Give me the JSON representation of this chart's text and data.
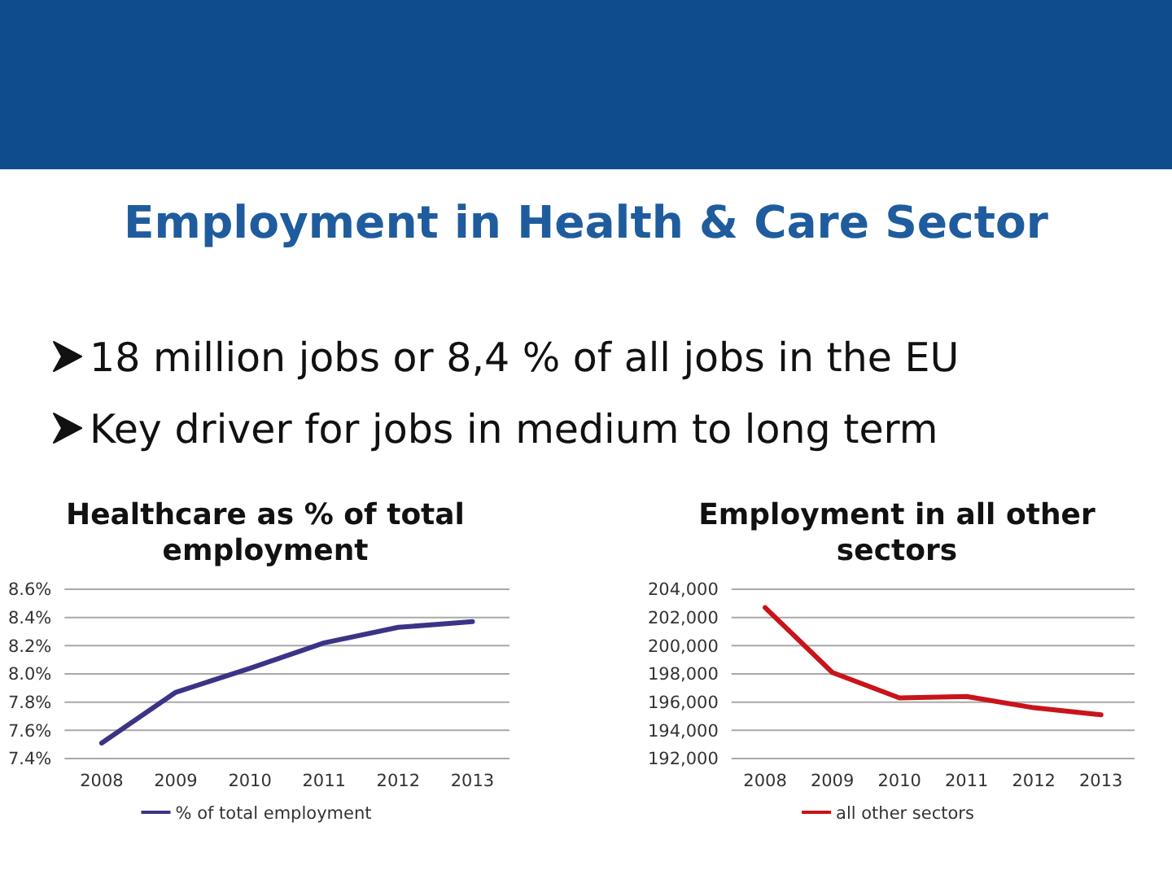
{
  "chart_data": [
    {
      "type": "other",
      "title": "Employment in Health & Care Sector",
      "annotations": [
        "18 million jobs or 8,4 % of all jobs in the EU",
        "Key driver for jobs in medium to long term"
      ]
    },
    {
      "type": "line",
      "title": "Healthcare as % of total employment",
      "categories": [
        "2008",
        "2009",
        "2010",
        "2011",
        "2012",
        "2013"
      ],
      "series": [
        {
          "name": "% of total employment",
          "color": "#3b3486",
          "values": [
            7.51,
            7.87,
            8.04,
            8.22,
            8.33,
            8.37
          ]
        }
      ],
      "ylim": [
        7.4,
        8.6
      ],
      "yticks": [
        {
          "value": 7.4,
          "label": "7.4%"
        },
        {
          "value": 7.6,
          "label": "7.6%"
        },
        {
          "value": 7.8,
          "label": "7.8%"
        },
        {
          "value": 8.0,
          "label": "8.0%"
        },
        {
          "value": 8.2,
          "label": "8.2%"
        },
        {
          "value": 8.4,
          "label": "8.4%"
        },
        {
          "value": 8.6,
          "label": "8.6%"
        }
      ],
      "grid": "y",
      "legend": "bottom"
    },
    {
      "type": "line",
      "title": "Employment in all other sectors",
      "categories": [
        "2008",
        "2009",
        "2010",
        "2011",
        "2012",
        "2013"
      ],
      "series": [
        {
          "name": "all other sectors",
          "color": "#c8141a",
          "values": [
            202700,
            198100,
            196300,
            196400,
            195600,
            195100
          ]
        }
      ],
      "ylim": [
        192000,
        204000
      ],
      "yticks": [
        {
          "value": 192000,
          "label": "192,000"
        },
        {
          "value": 194000,
          "label": "194,000"
        },
        {
          "value": 196000,
          "label": "196,000"
        },
        {
          "value": 198000,
          "label": "198,000"
        },
        {
          "value": 200000,
          "label": "200,000"
        },
        {
          "value": 202000,
          "label": "202,000"
        },
        {
          "value": 204000,
          "label": "204,000"
        }
      ],
      "grid": "y",
      "legend": "bottom"
    }
  ]
}
